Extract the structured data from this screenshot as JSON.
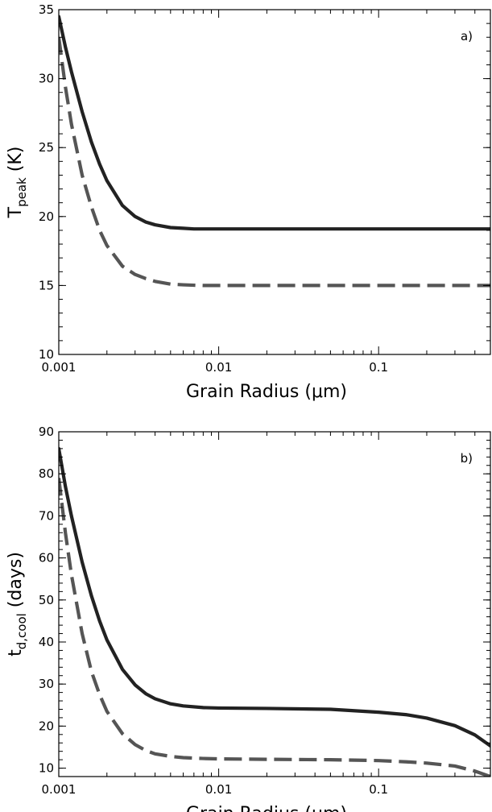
{
  "chart_data": [
    {
      "type": "line",
      "panel_label": "a)",
      "xlabel": "Grain Radius (μm)",
      "ylabel_main": "T",
      "ylabel_sub": "peak",
      "ylabel_tail": " (K)",
      "xscale": "log",
      "xlim": [
        0.001,
        0.5
      ],
      "ylim": [
        10,
        35
      ],
      "xticks": [
        0.001,
        0.01,
        0.1
      ],
      "xtick_labels": [
        "0.001",
        "0.01",
        "0.1"
      ],
      "yticks": [
        10,
        15,
        20,
        25,
        30,
        35
      ],
      "ytick_labels": [
        "10",
        "15",
        "20",
        "25",
        "30",
        "35"
      ],
      "series": [
        {
          "style": "solid",
          "color": "#222222",
          "x": [
            0.001,
            0.0011,
            0.0012,
            0.0014,
            0.0016,
            0.0018,
            0.002,
            0.0025,
            0.003,
            0.0035,
            0.004,
            0.005,
            0.006,
            0.007,
            0.008,
            0.01,
            0.015,
            0.02,
            0.05,
            0.1,
            0.2,
            0.5
          ],
          "y": [
            34.5,
            32.3,
            30.5,
            27.6,
            25.4,
            23.8,
            22.6,
            20.8,
            20.0,
            19.6,
            19.4,
            19.2,
            19.15,
            19.1,
            19.1,
            19.1,
            19.1,
            19.1,
            19.1,
            19.1,
            19.1,
            19.1
          ]
        },
        {
          "style": "dashed",
          "color": "#555555",
          "x": [
            0.001,
            0.0011,
            0.0012,
            0.0014,
            0.0016,
            0.0018,
            0.002,
            0.0025,
            0.003,
            0.0035,
            0.004,
            0.005,
            0.006,
            0.007,
            0.008,
            0.01,
            0.015,
            0.02,
            0.05,
            0.1,
            0.2,
            0.5
          ],
          "y": [
            33.0,
            29.4,
            26.7,
            23.0,
            20.7,
            19.0,
            17.9,
            16.4,
            15.8,
            15.5,
            15.3,
            15.1,
            15.05,
            15.02,
            15.0,
            15.0,
            15.0,
            15.0,
            15.0,
            15.0,
            15.0,
            15.0
          ]
        }
      ]
    },
    {
      "type": "line",
      "panel_label": "b)",
      "xlabel": "Grain Radius (μm)",
      "ylabel_main": "t",
      "ylabel_sub": "d,cool",
      "ylabel_tail": " (days)",
      "xscale": "log",
      "xlim": [
        0.001,
        0.5
      ],
      "ylim": [
        8,
        90
      ],
      "xticks": [
        0.001,
        0.01,
        0.1
      ],
      "xtick_labels": [
        "0.001",
        "0.01",
        "0.1"
      ],
      "yticks": [
        10,
        20,
        30,
        40,
        50,
        60,
        70,
        80,
        90
      ],
      "ytick_labels": [
        "10",
        "20",
        "30",
        "40",
        "50",
        "60",
        "70",
        "80",
        "90"
      ],
      "series": [
        {
          "style": "solid",
          "color": "#222222",
          "x": [
            0.001,
            0.0011,
            0.0012,
            0.0014,
            0.0016,
            0.0018,
            0.002,
            0.0025,
            0.003,
            0.0035,
            0.004,
            0.005,
            0.006,
            0.008,
            0.01,
            0.02,
            0.05,
            0.1,
            0.15,
            0.2,
            0.3,
            0.4,
            0.5
          ],
          "y": [
            86.0,
            77.0,
            70.0,
            59.0,
            51.0,
            45.0,
            40.5,
            33.5,
            29.8,
            27.7,
            26.5,
            25.3,
            24.8,
            24.4,
            24.3,
            24.2,
            24.0,
            23.3,
            22.7,
            21.9,
            20.1,
            17.9,
            15.3
          ]
        },
        {
          "style": "dashed",
          "color": "#555555",
          "x": [
            0.001,
            0.0011,
            0.0012,
            0.0014,
            0.0016,
            0.0018,
            0.002,
            0.0025,
            0.003,
            0.0035,
            0.004,
            0.005,
            0.006,
            0.008,
            0.01,
            0.02,
            0.05,
            0.1,
            0.15,
            0.2,
            0.3,
            0.4,
            0.5
          ],
          "y": [
            79.0,
            66.0,
            56.0,
            42.0,
            33.0,
            27.5,
            23.5,
            18.2,
            15.6,
            14.2,
            13.4,
            12.8,
            12.5,
            12.3,
            12.2,
            12.1,
            12.0,
            11.8,
            11.5,
            11.2,
            10.5,
            9.3,
            8.0
          ]
        }
      ]
    }
  ]
}
